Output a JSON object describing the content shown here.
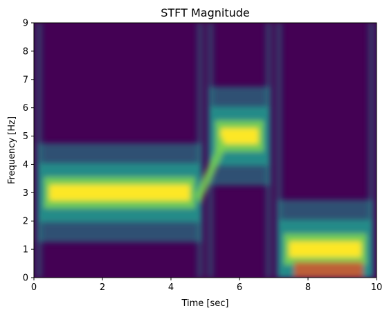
{
  "chart_data": {
    "type": "heatmap",
    "title": "STFT Magnitude",
    "xlabel": "Time [sec]",
    "ylabel": "Frequency [Hz]",
    "xlim": [
      0,
      10
    ],
    "ylim": [
      0,
      9
    ],
    "xticks": [
      "0",
      "2",
      "4",
      "6",
      "8",
      "10"
    ],
    "yticks": [
      "0",
      "1",
      "2",
      "3",
      "4",
      "5",
      "6",
      "7",
      "8",
      "9"
    ],
    "colormap": "viridis",
    "colors": {
      "low": "#440154",
      "mid": "#21918c",
      "high": "#fde725",
      "orange": "#d8572a"
    },
    "segments": [
      {
        "t_start": 0.0,
        "t_end": 5.0,
        "frequency_hz": 3.0,
        "magnitude": 1.0
      },
      {
        "t_start": 5.0,
        "t_end": 7.0,
        "frequency_hz": 5.0,
        "magnitude": 1.0
      },
      {
        "t_start": 7.0,
        "t_end": 10.0,
        "frequency_hz": 1.0,
        "magnitude": 1.0
      }
    ],
    "grid": false,
    "legend": "none"
  }
}
